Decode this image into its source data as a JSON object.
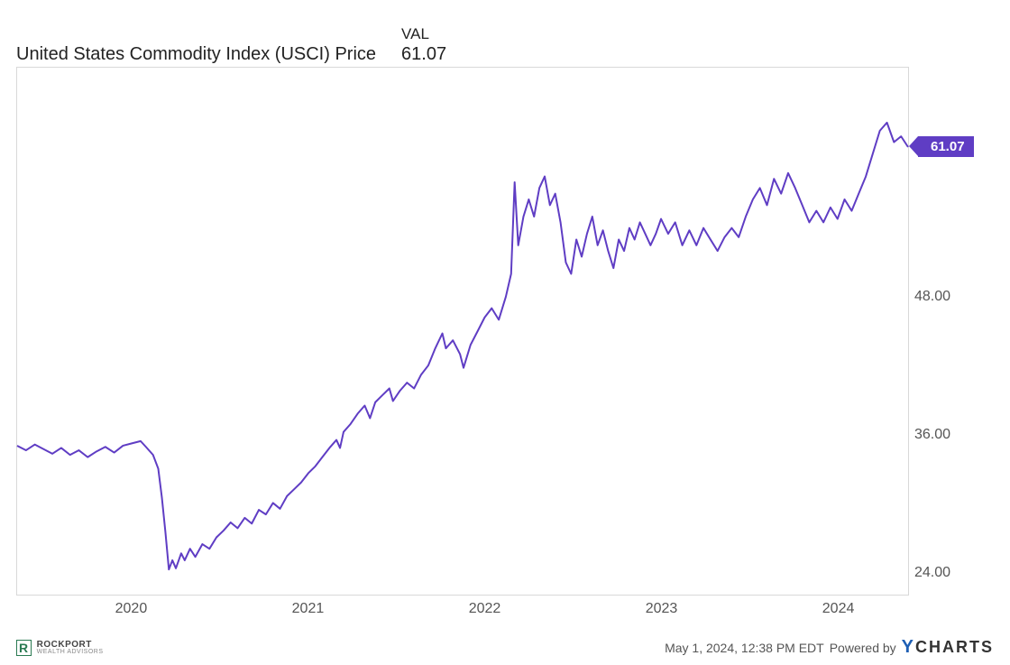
{
  "chart": {
    "type": "line",
    "series_title": "United States Commodity Index (USCI) Price",
    "val_label": "VAL",
    "val_value": "61.07",
    "line_color": "#5f3dc4",
    "line_width": 2,
    "background_color": "#ffffff",
    "border_color": "#d8d8d8",
    "axis_text_color": "#555555",
    "y_axis": {
      "domain_min": 22,
      "domain_max": 68,
      "ticks": [
        24.0,
        36.0,
        48.0
      ],
      "tick_labels": [
        "24.00",
        "36.00",
        "48.00"
      ]
    },
    "x_axis": {
      "domain_start": 2019.35,
      "domain_end": 2024.4,
      "ticks": [
        2020,
        2021,
        2022,
        2023,
        2024
      ],
      "tick_labels": [
        "2020",
        "2021",
        "2022",
        "2023",
        "2024"
      ]
    },
    "price_flag": {
      "value": "61.07",
      "y": 61.07,
      "bg_color": "#5f3dc4",
      "text_color": "#ffffff"
    },
    "data": [
      [
        2019.35,
        35.0
      ],
      [
        2019.4,
        34.6
      ],
      [
        2019.45,
        35.1
      ],
      [
        2019.5,
        34.7
      ],
      [
        2019.55,
        34.3
      ],
      [
        2019.6,
        34.8
      ],
      [
        2019.65,
        34.2
      ],
      [
        2019.7,
        34.6
      ],
      [
        2019.75,
        34.0
      ],
      [
        2019.8,
        34.5
      ],
      [
        2019.85,
        34.9
      ],
      [
        2019.9,
        34.4
      ],
      [
        2019.95,
        35.0
      ],
      [
        2020.0,
        35.2
      ],
      [
        2020.05,
        35.4
      ],
      [
        2020.08,
        34.9
      ],
      [
        2020.12,
        34.2
      ],
      [
        2020.15,
        33.0
      ],
      [
        2020.17,
        30.5
      ],
      [
        2020.19,
        27.5
      ],
      [
        2020.21,
        24.2
      ],
      [
        2020.23,
        25.0
      ],
      [
        2020.25,
        24.3
      ],
      [
        2020.28,
        25.6
      ],
      [
        2020.3,
        25.0
      ],
      [
        2020.33,
        26.0
      ],
      [
        2020.36,
        25.3
      ],
      [
        2020.4,
        26.4
      ],
      [
        2020.44,
        26.0
      ],
      [
        2020.48,
        27.0
      ],
      [
        2020.52,
        27.6
      ],
      [
        2020.56,
        28.3
      ],
      [
        2020.6,
        27.8
      ],
      [
        2020.64,
        28.7
      ],
      [
        2020.68,
        28.2
      ],
      [
        2020.72,
        29.4
      ],
      [
        2020.76,
        29.0
      ],
      [
        2020.8,
        30.0
      ],
      [
        2020.84,
        29.5
      ],
      [
        2020.88,
        30.6
      ],
      [
        2020.92,
        31.2
      ],
      [
        2020.96,
        31.8
      ],
      [
        2021.0,
        32.6
      ],
      [
        2021.04,
        33.2
      ],
      [
        2021.08,
        34.0
      ],
      [
        2021.12,
        34.8
      ],
      [
        2021.16,
        35.5
      ],
      [
        2021.18,
        34.8
      ],
      [
        2021.2,
        36.2
      ],
      [
        2021.24,
        36.9
      ],
      [
        2021.28,
        37.8
      ],
      [
        2021.32,
        38.5
      ],
      [
        2021.35,
        37.4
      ],
      [
        2021.38,
        38.8
      ],
      [
        2021.42,
        39.4
      ],
      [
        2021.46,
        40.0
      ],
      [
        2021.48,
        38.9
      ],
      [
        2021.52,
        39.8
      ],
      [
        2021.56,
        40.5
      ],
      [
        2021.6,
        40.0
      ],
      [
        2021.64,
        41.2
      ],
      [
        2021.68,
        42.0
      ],
      [
        2021.72,
        43.5
      ],
      [
        2021.76,
        44.8
      ],
      [
        2021.78,
        43.5
      ],
      [
        2021.82,
        44.2
      ],
      [
        2021.86,
        43.0
      ],
      [
        2021.88,
        41.8
      ],
      [
        2021.9,
        42.8
      ],
      [
        2021.92,
        43.8
      ],
      [
        2021.96,
        45.0
      ],
      [
        2022.0,
        46.2
      ],
      [
        2022.04,
        47.0
      ],
      [
        2022.08,
        46.0
      ],
      [
        2022.12,
        48.0
      ],
      [
        2022.15,
        50.0
      ],
      [
        2022.17,
        58.0
      ],
      [
        2022.19,
        52.5
      ],
      [
        2022.22,
        55.0
      ],
      [
        2022.25,
        56.5
      ],
      [
        2022.28,
        55.0
      ],
      [
        2022.31,
        57.5
      ],
      [
        2022.34,
        58.5
      ],
      [
        2022.37,
        56.0
      ],
      [
        2022.4,
        57.0
      ],
      [
        2022.43,
        54.5
      ],
      [
        2022.46,
        51.0
      ],
      [
        2022.49,
        50.0
      ],
      [
        2022.52,
        53.0
      ],
      [
        2022.55,
        51.5
      ],
      [
        2022.58,
        53.5
      ],
      [
        2022.61,
        55.0
      ],
      [
        2022.64,
        52.5
      ],
      [
        2022.67,
        53.8
      ],
      [
        2022.7,
        52.0
      ],
      [
        2022.73,
        50.5
      ],
      [
        2022.76,
        53.0
      ],
      [
        2022.79,
        52.0
      ],
      [
        2022.82,
        54.0
      ],
      [
        2022.85,
        53.0
      ],
      [
        2022.88,
        54.5
      ],
      [
        2022.91,
        53.5
      ],
      [
        2022.94,
        52.5
      ],
      [
        2022.97,
        53.5
      ],
      [
        2023.0,
        54.8
      ],
      [
        2023.04,
        53.5
      ],
      [
        2023.08,
        54.5
      ],
      [
        2023.12,
        52.5
      ],
      [
        2023.16,
        53.8
      ],
      [
        2023.2,
        52.5
      ],
      [
        2023.24,
        54.0
      ],
      [
        2023.28,
        53.0
      ],
      [
        2023.32,
        52.0
      ],
      [
        2023.36,
        53.2
      ],
      [
        2023.4,
        54.0
      ],
      [
        2023.44,
        53.2
      ],
      [
        2023.48,
        55.0
      ],
      [
        2023.52,
        56.5
      ],
      [
        2023.56,
        57.5
      ],
      [
        2023.6,
        56.0
      ],
      [
        2023.64,
        58.3
      ],
      [
        2023.68,
        57.0
      ],
      [
        2023.72,
        58.8
      ],
      [
        2023.76,
        57.5
      ],
      [
        2023.8,
        56.0
      ],
      [
        2023.84,
        54.5
      ],
      [
        2023.88,
        55.5
      ],
      [
        2023.92,
        54.5
      ],
      [
        2023.96,
        55.8
      ],
      [
        2024.0,
        54.8
      ],
      [
        2024.04,
        56.5
      ],
      [
        2024.08,
        55.5
      ],
      [
        2024.12,
        57.0
      ],
      [
        2024.16,
        58.5
      ],
      [
        2024.2,
        60.5
      ],
      [
        2024.24,
        62.5
      ],
      [
        2024.28,
        63.2
      ],
      [
        2024.32,
        61.5
      ],
      [
        2024.36,
        62.0
      ],
      [
        2024.4,
        61.07
      ]
    ]
  },
  "footer": {
    "timestamp": "May 1, 2024, 12:38 PM EDT",
    "powered_by_prefix": "Powered by",
    "ycharts_label": "CHARTS",
    "rockport_brand": "ROCKPORT",
    "rockport_sub": "WEALTH ADVISORS"
  }
}
